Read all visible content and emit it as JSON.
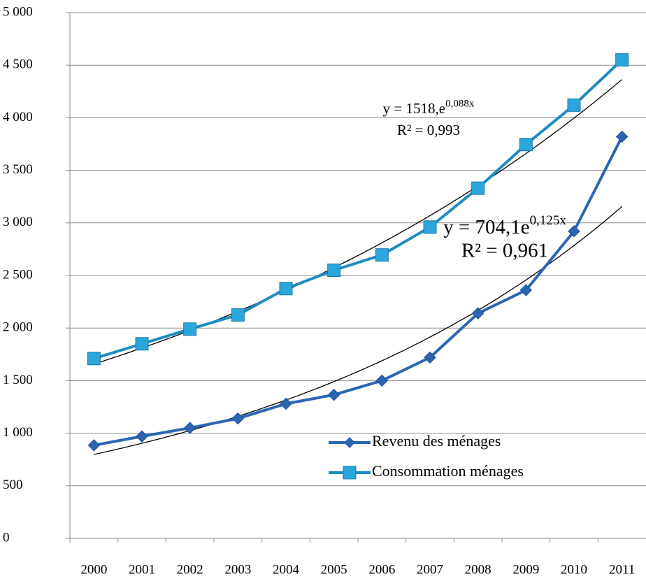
{
  "chart_data": {
    "type": "line",
    "categories": [
      "2000",
      "2001",
      "2002",
      "2003",
      "2004",
      "2005",
      "2006",
      "2007",
      "2008",
      "2009",
      "2010",
      "2011"
    ],
    "series": [
      {
        "name": "Revenu des  ménages",
        "color": "#2b66b3",
        "marker": "diamond",
        "values": [
          885,
          970,
          1050,
          1140,
          1280,
          1365,
          1500,
          1720,
          2140,
          2360,
          2920,
          3820
        ]
      },
      {
        "name": "Consommation ménages",
        "color": "#1f8cc0",
        "marker": "square",
        "values": [
          1710,
          1850,
          1990,
          2125,
          2375,
          2550,
          2695,
          2960,
          3330,
          3745,
          4120,
          4550
        ]
      }
    ],
    "trendlines": [
      {
        "series": 0,
        "a": 704.1,
        "b": 0.125,
        "equation": "y = 704,1e",
        "exponent": "0,125x",
        "r2_label": "R² = 0,961"
      },
      {
        "series": 1,
        "a": 1518,
        "b": 0.088,
        "equation": "y = 1518,e",
        "exponent": "0,088x",
        "r2_label": "R² = 0,993"
      }
    ],
    "ylim": [
      0,
      5000
    ],
    "yticks": [
      0,
      500,
      {
        "value": 1000,
        "label": "1 000"
      },
      {
        "value": 1500,
        "label": "1 500"
      },
      {
        "value": 2000,
        "label": "2 000"
      },
      {
        "value": 2500,
        "label": "2 500"
      },
      {
        "value": 3000,
        "label": "3 000"
      },
      {
        "value": 3500,
        "label": "3 500"
      },
      {
        "value": 4000,
        "label": "4 000"
      },
      {
        "value": 4500,
        "label": "4 500"
      },
      {
        "value": 5000,
        "label": "5 000"
      }
    ],
    "grid": true
  }
}
